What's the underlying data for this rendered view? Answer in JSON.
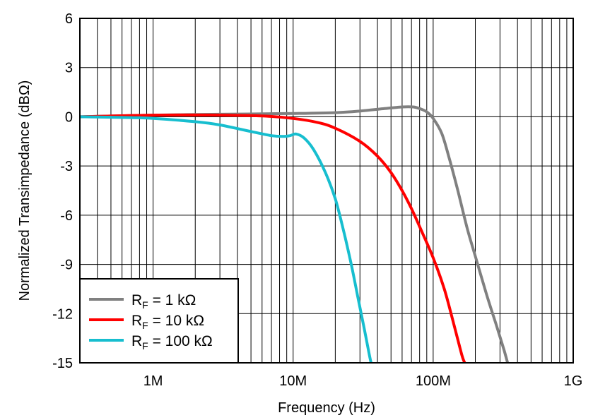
{
  "chart_data": {
    "type": "line",
    "title": "",
    "xlabel": "Frequency (Hz)",
    "ylabel": "Normalized Transimpedance (dBΩ)",
    "x_scale": "log",
    "xlim": [
      300000,
      1000000000
    ],
    "ylim": [
      -15,
      6
    ],
    "x_ticks": [
      {
        "value": 1000000,
        "label": "1M"
      },
      {
        "value": 10000000,
        "label": "10M"
      },
      {
        "value": 100000000,
        "label": "100M"
      },
      {
        "value": 1000000000,
        "label": "1G"
      }
    ],
    "y_ticks": [
      {
        "value": 6,
        "label": "6"
      },
      {
        "value": 3,
        "label": "3"
      },
      {
        "value": 0,
        "label": "0"
      },
      {
        "value": -3,
        "label": "-3"
      },
      {
        "value": -6,
        "label": "-6"
      },
      {
        "value": -9,
        "label": "-9"
      },
      {
        "value": -12,
        "label": "-12"
      },
      {
        "value": -15,
        "label": "-15"
      }
    ],
    "grid": true,
    "legend_position": "bottom-left",
    "series": [
      {
        "label_main": "R",
        "label_sub": "F",
        "label_rest": " = 1 kΩ",
        "color": "#808080",
        "points": [
          [
            300000,
            0.0
          ],
          [
            1000000,
            0.1
          ],
          [
            3000000,
            0.15
          ],
          [
            10000000,
            0.2
          ],
          [
            20000000,
            0.25
          ],
          [
            30000000,
            0.35
          ],
          [
            45000000,
            0.5
          ],
          [
            60000000,
            0.6
          ],
          [
            72000000,
            0.6
          ],
          [
            80000000,
            0.5
          ],
          [
            90000000,
            0.3
          ],
          [
            100000000,
            -0.1
          ],
          [
            115000000,
            -1.0
          ],
          [
            130000000,
            -2.5
          ],
          [
            150000000,
            -4.5
          ],
          [
            175000000,
            -6.8
          ],
          [
            200000000,
            -8.5
          ],
          [
            240000000,
            -10.8
          ],
          [
            280000000,
            -12.6
          ],
          [
            320000000,
            -14.2
          ],
          [
            340000000,
            -15.0
          ]
        ]
      },
      {
        "label_main": "R",
        "label_sub": "F",
        "label_rest": " = 10 kΩ",
        "color": "#ff0000",
        "points": [
          [
            300000,
            0.0
          ],
          [
            1000000,
            0.1
          ],
          [
            3000000,
            0.1
          ],
          [
            6000000,
            0.05
          ],
          [
            10000000,
            -0.1
          ],
          [
            15000000,
            -0.35
          ],
          [
            20000000,
            -0.7
          ],
          [
            30000000,
            -1.5
          ],
          [
            40000000,
            -2.4
          ],
          [
            50000000,
            -3.4
          ],
          [
            60000000,
            -4.5
          ],
          [
            70000000,
            -5.6
          ],
          [
            80000000,
            -6.7
          ],
          [
            100000000,
            -8.6
          ],
          [
            120000000,
            -10.5
          ],
          [
            140000000,
            -12.6
          ],
          [
            160000000,
            -14.5
          ],
          [
            168000000,
            -15.0
          ]
        ]
      },
      {
        "label_main": "R",
        "label_sub": "F",
        "label_rest": " = 100 kΩ",
        "color": "#17becf",
        "points": [
          [
            300000,
            0.0
          ],
          [
            700000,
            -0.05
          ],
          [
            1000000,
            -0.1
          ],
          [
            2000000,
            -0.3
          ],
          [
            3000000,
            -0.5
          ],
          [
            5000000,
            -0.9
          ],
          [
            7000000,
            -1.15
          ],
          [
            8500000,
            -1.2
          ],
          [
            9500000,
            -1.15
          ],
          [
            10500000,
            -1.05
          ],
          [
            12000000,
            -1.3
          ],
          [
            14000000,
            -2.0
          ],
          [
            17000000,
            -3.4
          ],
          [
            20000000,
            -5.0
          ],
          [
            23000000,
            -7.0
          ],
          [
            26000000,
            -9.0
          ],
          [
            29000000,
            -11.0
          ],
          [
            32000000,
            -12.8
          ],
          [
            35000000,
            -14.5
          ],
          [
            36000000,
            -15.0
          ]
        ]
      }
    ]
  }
}
